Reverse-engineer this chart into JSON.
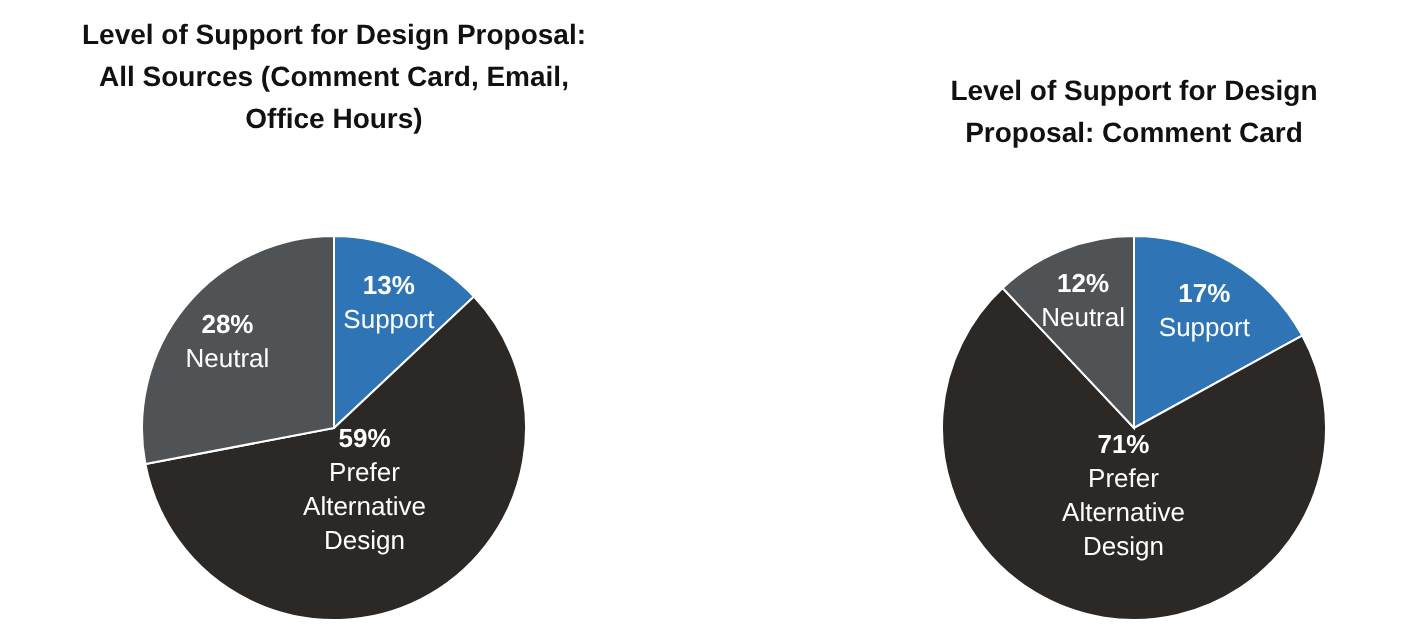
{
  "chart_data": [
    {
      "type": "pie",
      "title": "Level of Support for Design Proposal: All Sources (Comment Card, Email, Office Hours)",
      "categories": [
        "Support",
        "Prefer Alternative Design",
        "Neutral"
      ],
      "values": [
        13,
        59,
        28
      ],
      "value_labels": [
        "13%",
        "59%",
        "28%"
      ],
      "colors": [
        "#2f75b5",
        "#2b2825",
        "#505355"
      ]
    },
    {
      "type": "pie",
      "title": "Level of Support for Design Proposal: Comment Card",
      "categories": [
        "Support",
        "Prefer Alternative Design",
        "Neutral"
      ],
      "values": [
        17,
        71,
        12
      ],
      "value_labels": [
        "17%",
        "71%",
        "12%"
      ],
      "colors": [
        "#2f75b5",
        "#2b2825",
        "#505355"
      ]
    }
  ]
}
